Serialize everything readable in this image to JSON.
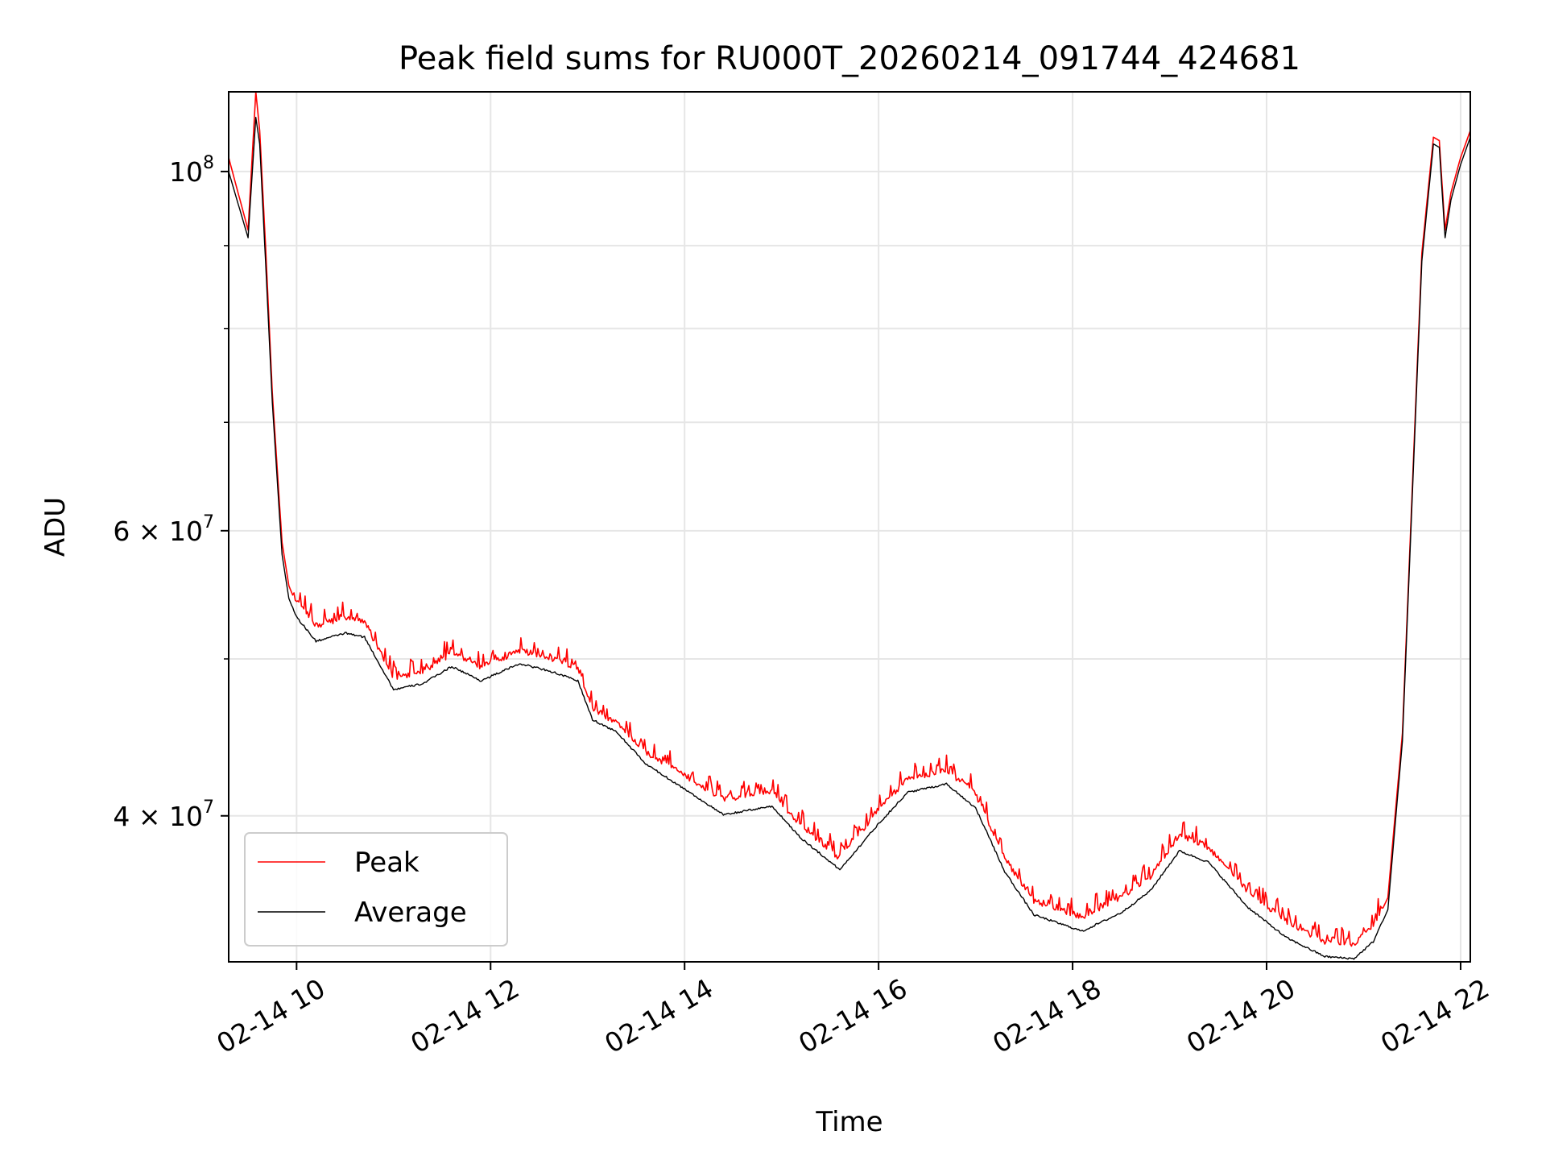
{
  "chart_data": {
    "type": "line",
    "title": "Peak field sums for RU000T_20260214_091744_424681",
    "xlabel": "Time",
    "ylabel": "ADU",
    "yscale": "log",
    "xlim": [
      9.3,
      22.1
    ],
    "ylim": [
      32500000,
      112000000
    ],
    "grid": true,
    "legend_position": "lower-left",
    "x_ticks": [
      10,
      12,
      14,
      16,
      18,
      20,
      22
    ],
    "x_tick_labels": [
      "02-14 10",
      "02-14 12",
      "02-14 14",
      "02-14 16",
      "02-14 18",
      "02-14 20",
      "02-14 22"
    ],
    "y_major_ticks": [
      {
        "value": 100000000,
        "base": "10",
        "exp": "8"
      },
      {
        "value": 60000000,
        "base": "6 × 10",
        "exp": "7"
      },
      {
        "value": 40000000,
        "base": "4 × 10",
        "exp": "7"
      }
    ],
    "y_minor_ticks": [
      30000000,
      50000000,
      70000000,
      80000000,
      90000000
    ],
    "series": [
      {
        "name": "Peak",
        "color": "#ff0000",
        "x": [
          9.3,
          9.5,
          9.58,
          9.62,
          9.68,
          9.75,
          9.85,
          9.92,
          10.0,
          10.2,
          10.5,
          10.7,
          11.0,
          11.3,
          11.6,
          11.9,
          12.3,
          12.6,
          12.9,
          13.05,
          13.3,
          13.6,
          14.0,
          14.4,
          14.9,
          15.2,
          15.6,
          16.0,
          16.3,
          16.7,
          17.0,
          17.3,
          17.6,
          18.1,
          18.5,
          18.8,
          19.1,
          19.4,
          19.8,
          20.2,
          20.6,
          20.9,
          21.1,
          21.25,
          21.4,
          21.6,
          21.72,
          21.78,
          21.84,
          21.9,
          22.0,
          22.1
        ],
        "y": [
          102000000,
          92000000,
          112000000,
          106000000,
          90000000,
          73000000,
          59000000,
          55500000,
          54000000,
          52200000,
          52800000,
          52500000,
          48500000,
          48900000,
          50200000,
          49200000,
          50400000,
          49900000,
          49200000,
          46300000,
          45500000,
          43600000,
          42200000,
          40800000,
          41200000,
          39300000,
          37500000,
          40200000,
          42000000,
          42500000,
          41100000,
          37500000,
          35300000,
          34500000,
          35500000,
          36500000,
          38800000,
          38100000,
          35800000,
          34300000,
          33300000,
          33200000,
          34100000,
          35600000,
          45000000,
          89000000,
          105000000,
          104500000,
          92000000,
          97000000,
          102000000,
          106000000
        ]
      },
      {
        "name": "Average",
        "color": "#000000",
        "x": [
          9.3,
          9.5,
          9.58,
          9.62,
          9.68,
          9.75,
          9.85,
          9.92,
          10.0,
          10.2,
          10.5,
          10.7,
          11.0,
          11.3,
          11.6,
          11.9,
          12.3,
          12.6,
          12.9,
          13.05,
          13.3,
          13.6,
          14.0,
          14.4,
          14.9,
          15.2,
          15.6,
          16.0,
          16.3,
          16.7,
          17.0,
          17.3,
          17.6,
          18.1,
          18.5,
          18.8,
          19.1,
          19.4,
          19.8,
          20.2,
          20.6,
          20.9,
          21.1,
          21.25,
          21.4,
          21.6,
          21.72,
          21.78,
          21.84,
          21.9,
          22.0,
          22.1
        ],
        "y": [
          100000000,
          91000000,
          108000000,
          104000000,
          88000000,
          72000000,
          58000000,
          54500000,
          53000000,
          51200000,
          51800000,
          51500000,
          47800000,
          48200000,
          49400000,
          48400000,
          49600000,
          49100000,
          48400000,
          45800000,
          45000000,
          43000000,
          41500000,
          40000000,
          40500000,
          38700000,
          37000000,
          39500000,
          41300000,
          41800000,
          40400000,
          36900000,
          34700000,
          33900000,
          34800000,
          35900000,
          38000000,
          37400000,
          35100000,
          33600000,
          32700000,
          32600000,
          33400000,
          35000000,
          44500000,
          88000000,
          104000000,
          103500000,
          91000000,
          96000000,
          101000000,
          105000000
        ]
      }
    ]
  }
}
